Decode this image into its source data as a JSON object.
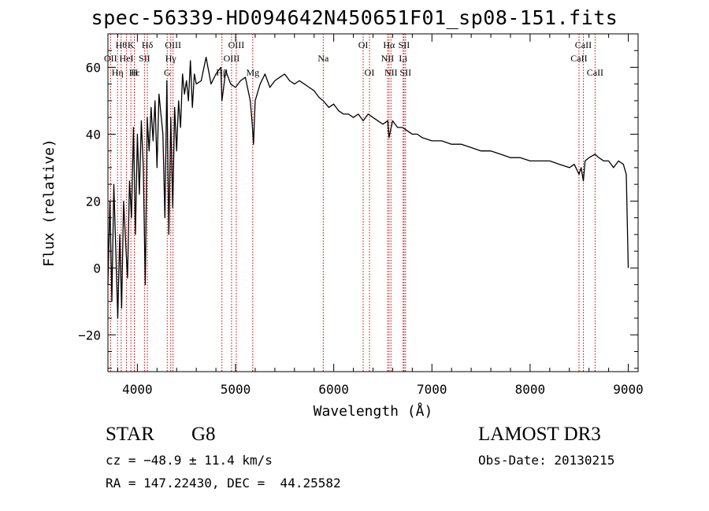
{
  "chart_data": {
    "type": "line",
    "title": "spec-56339-HD094642N450651F01_sp08-151.fits",
    "xlabel": "Wavelength (Å)",
    "ylabel": "Flux (relative)",
    "xlim": [
      3700,
      9100
    ],
    "ylim": [
      -31,
      70
    ],
    "xticks": [
      4000,
      5000,
      6000,
      7000,
      8000,
      9000
    ],
    "yticks": [
      -20,
      0,
      20,
      40,
      60
    ],
    "grid": false,
    "series": [
      {
        "x": [
          3700,
          3720,
          3740,
          3760,
          3780,
          3800,
          3820,
          3840,
          3860,
          3880,
          3900,
          3920,
          3940,
          3960,
          3980,
          4000,
          4020,
          4040,
          4060,
          4080,
          4100,
          4120,
          4140,
          4160,
          4180,
          4200,
          4220,
          4240,
          4260,
          4280,
          4300,
          4320,
          4340,
          4360,
          4380,
          4400,
          4420,
          4440,
          4460,
          4480,
          4500,
          4520,
          4540,
          4560,
          4580,
          4600,
          4650,
          4700,
          4750,
          4800,
          4850,
          4861,
          4900,
          4950,
          5000,
          5050,
          5100,
          5150,
          5170,
          5183,
          5200,
          5250,
          5300,
          5350,
          5400,
          5450,
          5500,
          5550,
          5600,
          5650,
          5700,
          5750,
          5800,
          5850,
          5893,
          5950,
          6000,
          6050,
          6100,
          6150,
          6200,
          6250,
          6300,
          6350,
          6400,
          6450,
          6500,
          6550,
          6563,
          6600,
          6650,
          6700,
          6750,
          6800,
          6850,
          6900,
          7000,
          7100,
          7200,
          7300,
          7400,
          7500,
          7600,
          7700,
          7800,
          7900,
          8000,
          8100,
          8200,
          8300,
          8400,
          8450,
          8498,
          8520,
          8542,
          8560,
          8600,
          8662,
          8700,
          8750,
          8800,
          8850,
          8900,
          8950,
          8980,
          9000
        ],
        "values": [
          -5,
          20,
          -10,
          25,
          5,
          -15,
          10,
          -12,
          20,
          8,
          -3,
          26,
          15,
          42,
          10,
          40,
          22,
          44,
          30,
          -5,
          45,
          35,
          48,
          38,
          50,
          30,
          52,
          46,
          40,
          15,
          56,
          10,
          45,
          18,
          48,
          35,
          50,
          42,
          58,
          52,
          56,
          50,
          62,
          48,
          58,
          55,
          56,
          63,
          55,
          58,
          60,
          50,
          59,
          55,
          54,
          56,
          57,
          50,
          43,
          37,
          50,
          55,
          58,
          54,
          56,
          57,
          58,
          56,
          55,
          56,
          55,
          54,
          53,
          51,
          50,
          48,
          49,
          47,
          46,
          46,
          45,
          46,
          44,
          46,
          45,
          44,
          43,
          44,
          39,
          44,
          42,
          42,
          41,
          40,
          40,
          39,
          38,
          38,
          37,
          37,
          36,
          35,
          35,
          34,
          33,
          33,
          32,
          32,
          32,
          31,
          30,
          31,
          28,
          30,
          26,
          32,
          33,
          34,
          33,
          32,
          32,
          30,
          32,
          31,
          28,
          0
        ]
      }
    ],
    "lines": [
      {
        "x": 3727,
        "label": "OII",
        "row": 2
      },
      {
        "x": 3798,
        "label": "Hη",
        "row": 3
      },
      {
        "x": 3835,
        "label": "Hθ",
        "row": 1
      },
      {
        "x": 3889,
        "label": "HeI",
        "row": 2
      },
      {
        "x": 3934,
        "label": "K",
        "row": 1
      },
      {
        "x": 3969,
        "label": "H",
        "row": 3
      },
      {
        "x": 3970,
        "label": "Hε",
        "row": 3
      },
      {
        "x": 4072,
        "label": "SII",
        "row": 2
      },
      {
        "x": 4102,
        "label": "Hδ",
        "row": 1
      },
      {
        "x": 4304,
        "label": "G",
        "row": 3
      },
      {
        "x": 4340,
        "label": "Hγ",
        "row": 2
      },
      {
        "x": 4363,
        "label": "OIII",
        "row": 1
      },
      {
        "x": 4861,
        "label": "Hβ",
        "row": 3
      },
      {
        "x": 4959,
        "label": "OIII",
        "row": 2
      },
      {
        "x": 5007,
        "label": "OIII",
        "row": 1
      },
      {
        "x": 5175,
        "label": "Mg",
        "row": 3
      },
      {
        "x": 5893,
        "label": "Na",
        "row": 2
      },
      {
        "x": 6300,
        "label": "OI",
        "row": 1
      },
      {
        "x": 6364,
        "label": "OI",
        "row": 3
      },
      {
        "x": 6548,
        "label": "NII",
        "row": 2
      },
      {
        "x": 6563,
        "label": "Hα",
        "row": 1
      },
      {
        "x": 6583,
        "label": "NII",
        "row": 3
      },
      {
        "x": 6707,
        "label": "Li",
        "row": 2
      },
      {
        "x": 6716,
        "label": "SII",
        "row": 1
      },
      {
        "x": 6731,
        "label": "SII",
        "row": 3
      },
      {
        "x": 8498,
        "label": "CaII",
        "row": 2
      },
      {
        "x": 8542,
        "label": "CaII",
        "row": 1
      },
      {
        "x": 8662,
        "label": "CaII",
        "row": 3
      }
    ],
    "line_color": "#cc0000"
  },
  "info": {
    "object_class": "STAR",
    "subclass": "G8",
    "survey": "LAMOST DR3",
    "cz": "cz = −48.9 ± 11.4 km/s",
    "obs_date": "Obs-Date: 20130215",
    "coords": "RA = 147.22430, DEC =  44.25582"
  }
}
